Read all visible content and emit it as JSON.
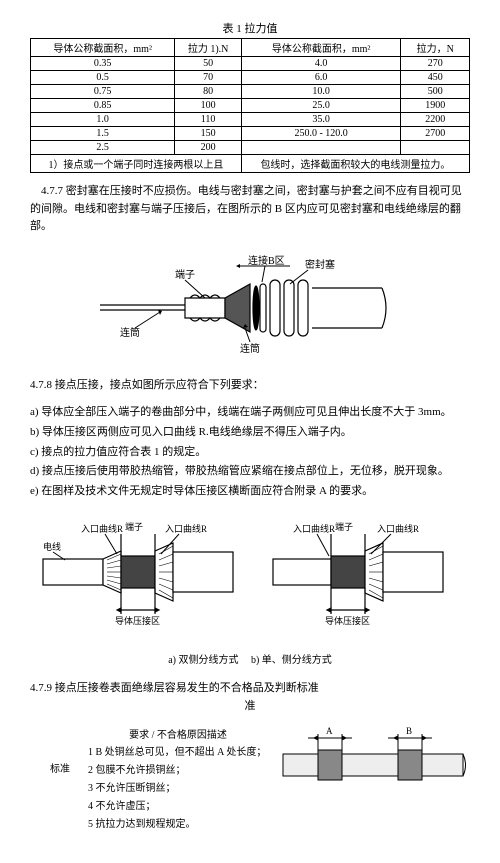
{
  "table": {
    "title": "表 1 拉力值",
    "headers": [
      "导体公称截面积，mm²",
      "拉力 1).N",
      "导体公称截面积，mm²",
      "拉力，N"
    ],
    "rows": [
      [
        "0.35",
        "50",
        "4.0",
        "270"
      ],
      [
        "0.5",
        "70",
        "6.0",
        "450"
      ],
      [
        "0.75",
        "80",
        "10.0",
        "500"
      ],
      [
        "0.85",
        "100",
        "25.0",
        "1900"
      ],
      [
        "1.0",
        "110",
        "35.0",
        "2200"
      ],
      [
        "1.5",
        "150",
        "250.0 - 120.0",
        "2700"
      ],
      [
        "2.5",
        "200",
        "",
        ""
      ]
    ],
    "footnote_left": "1）接点或一个端子同时连接两根以上且",
    "footnote_right": "包线时，选择截面积较大的电线测量拉力。"
  },
  "s477": {
    "num": "4.7.7",
    "text": "密封塞在压接时不应损伤。电线与密封塞之间，密封塞与护套之间不应有目视可见的间隙。电线和密封塞与端子压接后，在图所示的 B 区内应可见密封塞和电线绝缘层的翻部。"
  },
  "fig1_labels": {
    "terminal": "端子",
    "conn_a": "连筒",
    "conn_b": "连筒",
    "zone_b": "连接B区",
    "seal": "密封塞"
  },
  "s478": {
    "num": "4.7.8",
    "lead": "接点压接，接点如图所示应符合下列要求：",
    "items": [
      "a) 导体应全部压入端子的卷曲部分中，线端在端子两侧应可见且伸出长度不大于 3mm。",
      "b) 导体压接区两侧应可见入口曲线 R.电线绝缘层不得压入端子内。",
      "c) 接点的拉力值应符合表 1 的规定。",
      "d) 接点压接后使用带胶热缩管，带胶热缩管应紧缩在接点部位上，无位移，脱开现象。",
      "e) 在图样及技术文件无规定时导体压接区横断面应符合附录 A 的要求。"
    ]
  },
  "fig2_labels": {
    "wire": "电线",
    "curve_r": "入口曲线R",
    "terminal": "端子",
    "crimp_zone": "导体压接区",
    "cap_a": "a) 双侧分线方式",
    "cap_b": "b) 单、侧分线方式"
  },
  "s479": {
    "num": "4.7.9",
    "title": "接点压接卷表面绝缘层容易发生的不合格品及判断标准"
  },
  "criteria": {
    "heading": "要求 / 不合格原因描述",
    "label": "标准",
    "items": [
      "1  B 处铜丝总可见，但不超出 A 处长度；",
      "2  包膜不允许损铜丝；",
      "3  不允许压断铜丝；",
      "4  不允许虚压；",
      "5  抗拉力达到规程规定。"
    ],
    "fig_a": "A",
    "fig_b": "B"
  }
}
